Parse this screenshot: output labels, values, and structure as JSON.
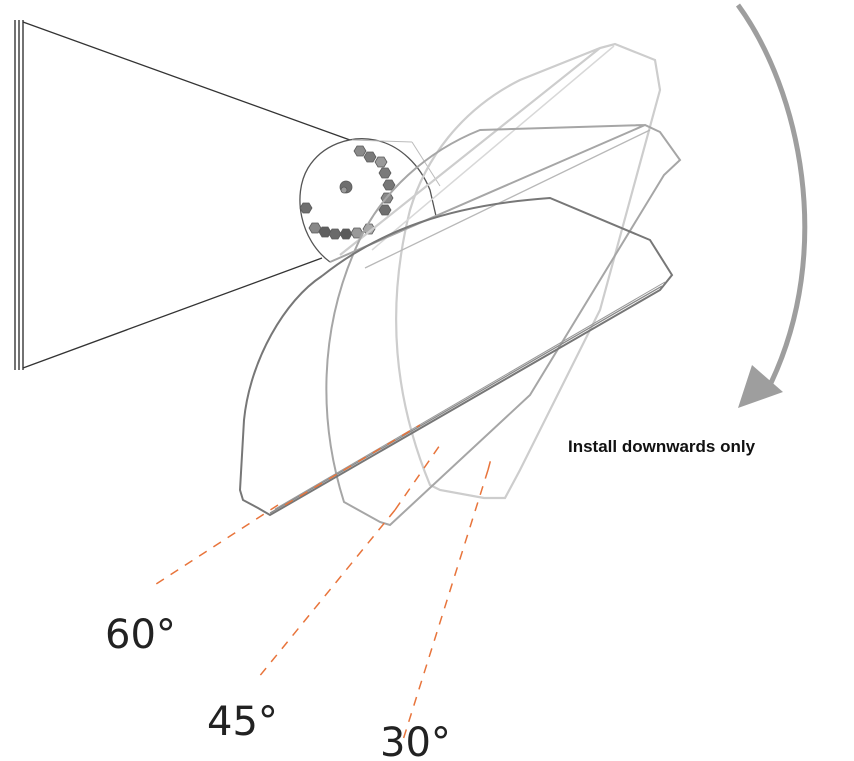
{
  "diagram": {
    "title": "",
    "caption": "Install downwards only",
    "angles": [
      {
        "label": "60°",
        "degrees": 60
      },
      {
        "label": "45°",
        "degrees": 45
      },
      {
        "label": "30°",
        "degrees": 30
      }
    ],
    "colors": {
      "dashed_guides": "#e8743b",
      "arrow": "#9e9e9e",
      "outline_dark": "#6a6a6a",
      "outline_mid": "#9a9a9a",
      "outline_light": "#c8c8c8",
      "background": "#ffffff"
    },
    "icons": [
      "curved-arrow-icon"
    ]
  }
}
